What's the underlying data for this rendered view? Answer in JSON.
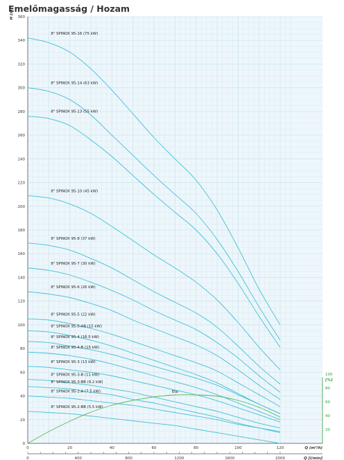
{
  "title": "Emelőmagasság / Hozam",
  "colors": {
    "curve": "#40c0d4",
    "efficiency": "#5cb85c",
    "grid": "#cfe6ee",
    "background": "#edf6fb"
  },
  "chart_data": {
    "type": "line",
    "title": "Emelőmagasság / Hozam",
    "ylabel": "H [m]",
    "xlabel_top": "Q (m³/h)",
    "xlabel_bottom": "Q [l/min]",
    "y2label": "[%]",
    "xlim": [
      0,
      125
    ],
    "ylim": [
      0,
      360
    ],
    "y2lim": [
      0,
      100
    ],
    "yticks": [
      20,
      40,
      60,
      80,
      100,
      120,
      140,
      160,
      180,
      200,
      220,
      240,
      260,
      280,
      300,
      320,
      340,
      360
    ],
    "xticks_top": [
      0,
      20,
      40,
      60,
      80,
      100,
      120
    ],
    "xticks_bottom_labels": [
      {
        "label": "0",
        "q": 0
      },
      {
        "label": "400",
        "q": 24
      },
      {
        "label": "800",
        "q": 48
      },
      {
        "label": "1200",
        "q": 72
      },
      {
        "label": "1600",
        "q": 96
      },
      {
        "label": "2000",
        "q": 120
      }
    ],
    "y2ticks": [
      20,
      40,
      60,
      80,
      100
    ],
    "series": [
      {
        "name": "8\" SPINOX 95-16 (75 kW)",
        "x": [
          0,
          10,
          20,
          30,
          40,
          50,
          60,
          70,
          80,
          90,
          100,
          110,
          120
        ],
        "y": [
          342,
          338,
          330,
          316,
          298,
          278,
          258,
          240,
          222,
          197,
          165,
          130,
          100
        ]
      },
      {
        "name": "8\" SPINOX 95-14 (63 kW)",
        "x": [
          0,
          10,
          20,
          30,
          40,
          50,
          60,
          70,
          80,
          90,
          100,
          110,
          120
        ],
        "y": [
          300,
          297,
          290,
          277,
          260,
          243,
          226,
          210,
          194,
          172,
          145,
          115,
          87
        ]
      },
      {
        "name": "8\" SPINOX 95-13 (55 kW)",
        "x": [
          0,
          10,
          20,
          30,
          40,
          50,
          60,
          70,
          80,
          90,
          100,
          110,
          120
        ],
        "y": [
          276,
          274,
          268,
          256,
          242,
          226,
          210,
          195,
          180,
          160,
          135,
          107,
          81
        ]
      },
      {
        "name": "8\" SPINOX 95-10 (45 kW)",
        "x": [
          0,
          10,
          20,
          30,
          40,
          50,
          60,
          70,
          80,
          90,
          100,
          110,
          120
        ],
        "y": [
          209,
          207,
          202,
          194,
          183,
          171,
          159,
          148,
          136,
          121,
          102,
          81,
          62
        ]
      },
      {
        "name": "8\" SPINOX 95-8 (37 kW)",
        "x": [
          0,
          10,
          20,
          30,
          40,
          50,
          60,
          70,
          80,
          90,
          100,
          110,
          120
        ],
        "y": [
          169,
          167,
          163,
          156,
          148,
          138,
          128,
          119,
          110,
          98,
          82,
          65,
          50
        ]
      },
      {
        "name": "8\" SPINOX 95-7 (30 kW)",
        "x": [
          0,
          10,
          20,
          30,
          40,
          50,
          60,
          70,
          80,
          90,
          100,
          110,
          120
        ],
        "y": [
          148,
          146,
          142,
          136,
          129,
          121,
          112,
          104,
          96,
          85,
          72,
          57,
          43
        ]
      },
      {
        "name": "8\" SPINOX 95-6 (26 kW)",
        "x": [
          0,
          10,
          20,
          30,
          40,
          50,
          60,
          70,
          80,
          90,
          100,
          110,
          120
        ],
        "y": [
          128,
          126,
          123,
          118,
          112,
          104,
          97,
          90,
          83,
          74,
          62,
          49,
          37
        ]
      },
      {
        "name": "8\" SPINOX 95-5 (22 kW)",
        "x": [
          0,
          10,
          20,
          30,
          40,
          50,
          60,
          70,
          80,
          90,
          100,
          110,
          120
        ],
        "y": [
          105,
          104,
          101,
          97,
          92,
          86,
          80,
          74,
          68,
          61,
          51,
          41,
          31
        ]
      },
      {
        "name": "8\" SPINOX 95-5-AB (15 kW)",
        "x": [
          0,
          10,
          20,
          30,
          40,
          50,
          60,
          70,
          80,
          90,
          100,
          110,
          120
        ],
        "y": [
          95,
          94,
          91,
          87,
          82,
          76,
          70,
          64,
          58,
          51,
          42,
          33,
          25
        ]
      },
      {
        "name": "8\" SPINOX 95-4 (18.5 kW)",
        "x": [
          0,
          10,
          20,
          30,
          40,
          50,
          60,
          70,
          80,
          90,
          100,
          110,
          120
        ],
        "y": [
          86,
          85,
          82,
          79,
          75,
          70,
          65,
          60,
          55,
          49,
          41,
          33,
          25
        ]
      },
      {
        "name": "8\" SPINOX 95-4-B (15 kW)",
        "x": [
          0,
          10,
          20,
          30,
          40,
          50,
          60,
          70,
          80,
          90,
          100,
          110,
          120
        ],
        "y": [
          77,
          76,
          74,
          71,
          67,
          62,
          57,
          52,
          47,
          41,
          34,
          27,
          20
        ]
      },
      {
        "name": "8\" SPINOX 95-3 (13 kW)",
        "x": [
          0,
          10,
          20,
          30,
          40,
          50,
          60,
          70,
          80,
          90,
          100,
          110,
          120
        ],
        "y": [
          65,
          64,
          62,
          60,
          57,
          53,
          49,
          45,
          41,
          36,
          30,
          24,
          18
        ]
      },
      {
        "name": "8\" SPINOX 95-3-B (11 kW)",
        "x": [
          0,
          10,
          20,
          30,
          40,
          50,
          60,
          70,
          80,
          90,
          100,
          110,
          120
        ],
        "y": [
          54,
          53,
          51,
          49,
          46,
          43,
          39,
          35,
          31,
          27,
          22,
          17,
          13
        ]
      },
      {
        "name": "8\" SPINOX 95-3-BB (9.2 kW)",
        "x": [
          0,
          10,
          20,
          30,
          40,
          50,
          60,
          70,
          80,
          90,
          100,
          110,
          120
        ],
        "y": [
          48,
          47,
          46,
          43,
          41,
          37,
          34,
          30,
          26,
          22,
          17,
          13,
          9
        ]
      },
      {
        "name": "8\" SPINOX 95-2-A (7.5 kW)",
        "x": [
          0,
          10,
          20,
          30,
          40,
          50,
          60,
          70,
          80,
          90,
          100,
          110,
          120
        ],
        "y": [
          40,
          39,
          38,
          36,
          34,
          32,
          29,
          26,
          23,
          20,
          16,
          13,
          10
        ]
      },
      {
        "name": "8\" SPINOX 95-2-BB (5.5 kW)",
        "x": [
          0,
          10,
          20,
          30,
          40,
          50,
          60,
          70,
          80,
          90,
          100,
          110,
          120
        ],
        "y": [
          27,
          26,
          25,
          23,
          21,
          19,
          17,
          15,
          12,
          9,
          6,
          3,
          0
        ]
      }
    ],
    "efficiency": {
      "name": "Eta",
      "x": [
        0,
        10,
        20,
        30,
        40,
        50,
        60,
        70,
        80,
        90,
        100,
        110,
        120
      ],
      "y": [
        0,
        17,
        32,
        45,
        55,
        62,
        67,
        70,
        70,
        68,
        62,
        52,
        38
      ]
    }
  }
}
